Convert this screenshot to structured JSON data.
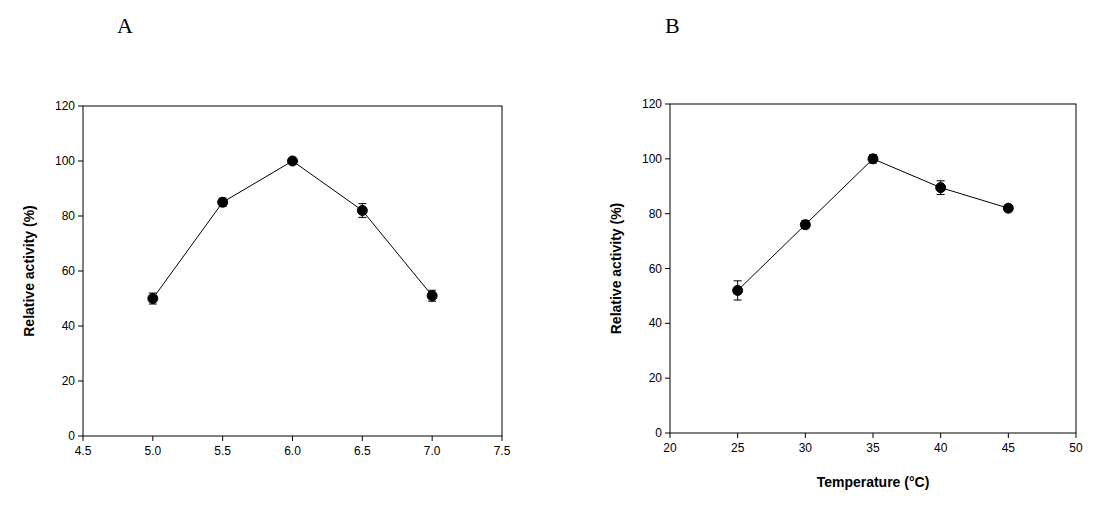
{
  "chart_data": [
    {
      "type": "line",
      "title": "A",
      "y_label": "Relative activity (%)",
      "x": [
        5.0,
        5.5,
        6.0,
        6.5,
        7.0
      ],
      "values": [
        50,
        85,
        100,
        82,
        51
      ],
      "errors": [
        2,
        1.5,
        1,
        2.5,
        2
      ],
      "color": "#000000",
      "marker": "circle",
      "xlim": [
        4.5,
        7.5
      ],
      "xticks": [
        4.5,
        {
          "value": 5,
          "label": "5.0"
        },
        5.5,
        {
          "value": 6,
          "label": "6.0"
        },
        6.5,
        {
          "value": 7,
          "label": "7.0"
        },
        7.5
      ],
      "ylim": [
        0,
        120
      ],
      "yticks": [
        0,
        20,
        40,
        60,
        80,
        100,
        120
      ]
    },
    {
      "type": "line",
      "title": "B",
      "y_label": "Relative activity (%)",
      "x_label": "Temperature (°C)",
      "x": [
        25,
        30,
        35,
        40,
        45
      ],
      "values": [
        52,
        76,
        100,
        89.5,
        82
      ],
      "errors": [
        3.5,
        1.5,
        1.5,
        2.5,
        1
      ],
      "color": "#000000",
      "marker": "circle",
      "xlim": [
        20,
        50
      ],
      "xticks": [
        20,
        25,
        30,
        35,
        40,
        45,
        50
      ],
      "ylim": [
        0,
        120
      ],
      "yticks": [
        0,
        20,
        40,
        60,
        80,
        100,
        120
      ]
    }
  ]
}
